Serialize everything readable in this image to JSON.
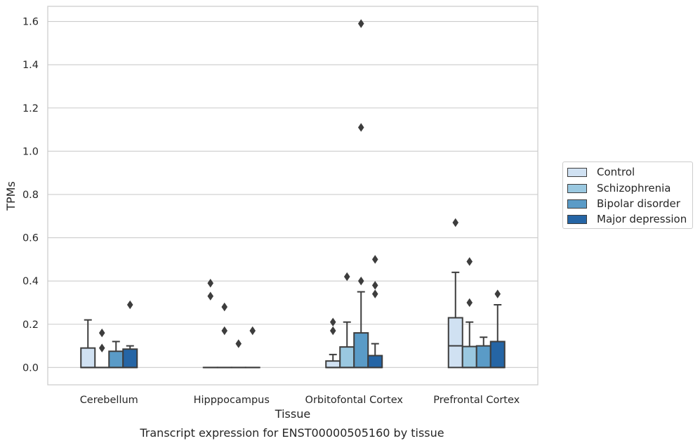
{
  "chart_data": {
    "type": "boxplot",
    "caption": "Transcript expression for ENST00000505160 by tissue",
    "xlabel": "Tissue",
    "ylabel": "TPMs",
    "ylim": [
      -0.08,
      1.67
    ],
    "yticks": [
      0.0,
      0.2,
      0.4,
      0.6,
      0.8,
      1.0,
      1.2,
      1.4,
      1.6
    ],
    "ytick_labels": [
      "0.0",
      "0.2",
      "0.4",
      "0.6",
      "0.8",
      "1.0",
      "1.2",
      "1.4",
      "1.6"
    ],
    "grid": "horizontal",
    "legend_position": "right",
    "categories": [
      "Cerebellum",
      "Hipppocampus",
      "Orbitofontal Cortex",
      "Prefrontal Cortex"
    ],
    "series": [
      {
        "name": "Control",
        "color": "#d0e1f2",
        "boxes": [
          {
            "whislo": 0.0,
            "q1": 0.0,
            "med": 0.0,
            "q3": 0.09,
            "whishi": 0.22,
            "fliers": []
          },
          {
            "whislo": 0.0,
            "q1": 0.0,
            "med": 0.0,
            "q3": 0.0,
            "whishi": 0.0,
            "fliers": [
              0.33,
              0.39
            ]
          },
          {
            "whislo": 0.0,
            "q1": 0.0,
            "med": 0.0,
            "q3": 0.03,
            "whishi": 0.06,
            "fliers": [
              0.17,
              0.21
            ]
          },
          {
            "whislo": 0.0,
            "q1": 0.0,
            "med": 0.1,
            "q3": 0.23,
            "whishi": 0.44,
            "fliers": [
              0.67
            ]
          }
        ]
      },
      {
        "name": "Schizophrenia",
        "color": "#9ac8e0",
        "boxes": [
          {
            "whislo": 0.0,
            "q1": 0.0,
            "med": 0.0,
            "q3": 0.0,
            "whishi": 0.0,
            "fliers": [
              0.09,
              0.16
            ]
          },
          {
            "whislo": 0.0,
            "q1": 0.0,
            "med": 0.0,
            "q3": 0.0,
            "whishi": 0.0,
            "fliers": [
              0.17,
              0.28
            ]
          },
          {
            "whislo": 0.0,
            "q1": 0.0,
            "med": 0.0,
            "q3": 0.095,
            "whishi": 0.21,
            "fliers": [
              0.42
            ]
          },
          {
            "whislo": 0.0,
            "q1": 0.0,
            "med": 0.0,
            "q3": 0.097,
            "whishi": 0.21,
            "fliers": [
              0.3,
              0.49
            ]
          }
        ]
      },
      {
        "name": "Bipolar disorder",
        "color": "#5a9bc7",
        "boxes": [
          {
            "whislo": 0.0,
            "q1": 0.0,
            "med": 0.0,
            "q3": 0.075,
            "whishi": 0.12,
            "fliers": []
          },
          {
            "whislo": 0.0,
            "q1": 0.0,
            "med": 0.0,
            "q3": 0.0,
            "whishi": 0.0,
            "fliers": [
              0.11
            ]
          },
          {
            "whislo": 0.0,
            "q1": 0.0,
            "med": 0.0,
            "q3": 0.16,
            "whishi": 0.35,
            "fliers": [
              0.4,
              1.11,
              1.59
            ]
          },
          {
            "whislo": 0.0,
            "q1": 0.0,
            "med": 0.0,
            "q3": 0.1,
            "whishi": 0.14,
            "fliers": []
          }
        ]
      },
      {
        "name": "Major depression",
        "color": "#2565a5",
        "boxes": [
          {
            "whislo": 0.0,
            "q1": 0.0,
            "med": 0.0,
            "q3": 0.085,
            "whishi": 0.1,
            "fliers": [
              0.29
            ]
          },
          {
            "whislo": 0.0,
            "q1": 0.0,
            "med": 0.0,
            "q3": 0.0,
            "whishi": 0.0,
            "fliers": [
              0.17
            ]
          },
          {
            "whislo": 0.0,
            "q1": 0.0,
            "med": 0.0,
            "q3": 0.055,
            "whishi": 0.11,
            "fliers": [
              0.34,
              0.38,
              0.5
            ]
          },
          {
            "whislo": 0.0,
            "q1": 0.0,
            "med": 0.0,
            "q3": 0.12,
            "whishi": 0.29,
            "fliers": [
              0.34
            ]
          }
        ]
      }
    ]
  }
}
